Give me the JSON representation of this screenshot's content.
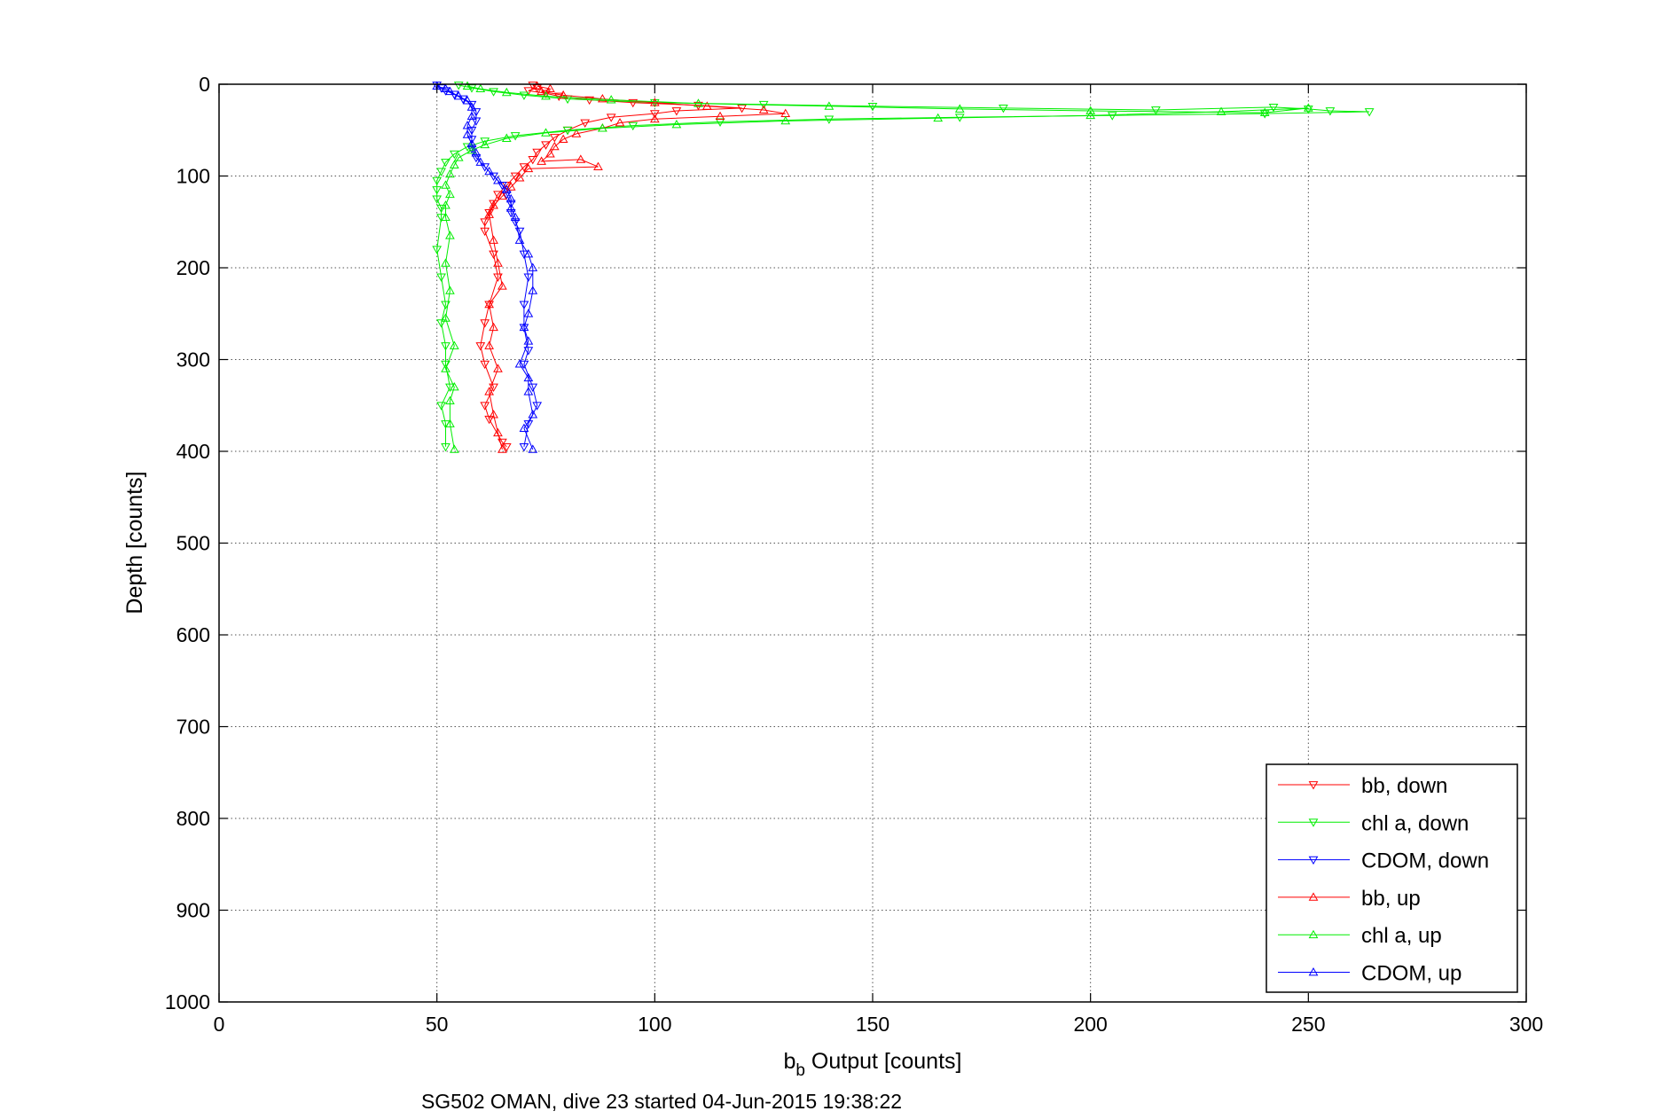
{
  "chart_data": {
    "type": "scatter",
    "title": "",
    "xlabel_main": "b",
    "xlabel_sub": "b",
    "xlabel_rest": " Output [counts]",
    "ylabel": "Depth [counts]",
    "caption": "SG502 OMAN, dive 23 started 04-Jun-2015 19:38:22",
    "xlim": [
      0,
      300
    ],
    "ylim": [
      0,
      1000
    ],
    "y_reversed": true,
    "grid": true,
    "xticks": [
      "0",
      "50",
      "100",
      "150",
      "200",
      "250",
      "300"
    ],
    "yticks": [
      "0",
      "100",
      "200",
      "300",
      "400",
      "500",
      "600",
      "700",
      "800",
      "900",
      "1000"
    ],
    "legend_position": "bottom-right",
    "series": [
      {
        "name": "bb, down",
        "color": "#ff0000",
        "marker": "triangle-down",
        "points": [
          [
            72,
            1
          ],
          [
            73,
            4
          ],
          [
            71,
            7
          ],
          [
            75,
            10
          ],
          [
            78,
            13
          ],
          [
            85,
            17
          ],
          [
            95,
            20
          ],
          [
            110,
            23
          ],
          [
            120,
            26
          ],
          [
            105,
            29
          ],
          [
            100,
            32
          ],
          [
            90,
            36
          ],
          [
            84,
            42
          ],
          [
            80,
            50
          ],
          [
            77,
            58
          ],
          [
            75,
            66
          ],
          [
            73,
            74
          ],
          [
            72,
            82
          ],
          [
            70,
            90
          ],
          [
            68,
            100
          ],
          [
            66,
            110
          ],
          [
            64,
            120
          ],
          [
            63,
            130
          ],
          [
            62,
            140
          ],
          [
            61,
            150
          ],
          [
            61,
            160
          ],
          [
            63,
            185
          ],
          [
            64,
            210
          ],
          [
            62,
            240
          ],
          [
            61,
            260
          ],
          [
            60,
            285
          ],
          [
            61,
            305
          ],
          [
            63,
            330
          ],
          [
            61,
            350
          ],
          [
            62,
            365
          ],
          [
            65,
            390
          ],
          [
            66,
            395
          ]
        ]
      },
      {
        "name": "chl a, down",
        "color": "#00ee00",
        "marker": "triangle-down",
        "points": [
          [
            55,
            1
          ],
          [
            58,
            4
          ],
          [
            63,
            8
          ],
          [
            70,
            12
          ],
          [
            80,
            16
          ],
          [
            100,
            20
          ],
          [
            125,
            22
          ],
          [
            150,
            24
          ],
          [
            180,
            26
          ],
          [
            215,
            28
          ],
          [
            242,
            25
          ],
          [
            250,
            27
          ],
          [
            255,
            29
          ],
          [
            264,
            30
          ],
          [
            240,
            32
          ],
          [
            205,
            34
          ],
          [
            170,
            36
          ],
          [
            140,
            38
          ],
          [
            115,
            41
          ],
          [
            95,
            45
          ],
          [
            80,
            50
          ],
          [
            68,
            56
          ],
          [
            61,
            62
          ],
          [
            57,
            68
          ],
          [
            54,
            76
          ],
          [
            52,
            85
          ],
          [
            51,
            95
          ],
          [
            50,
            105
          ],
          [
            50,
            115
          ],
          [
            50,
            125
          ],
          [
            51,
            135
          ],
          [
            51,
            145
          ],
          [
            50,
            180
          ],
          [
            51,
            210
          ],
          [
            52,
            240
          ],
          [
            51,
            260
          ],
          [
            52,
            285
          ],
          [
            52,
            305
          ],
          [
            53,
            330
          ],
          [
            51,
            350
          ],
          [
            52,
            370
          ],
          [
            52,
            395
          ]
        ]
      },
      {
        "name": "CDOM, down",
        "color": "#0000ff",
        "marker": "triangle-down",
        "points": [
          [
            50,
            1
          ],
          [
            51,
            4
          ],
          [
            52,
            7
          ],
          [
            54,
            11
          ],
          [
            56,
            16
          ],
          [
            58,
            22
          ],
          [
            59,
            30
          ],
          [
            59,
            40
          ],
          [
            58,
            50
          ],
          [
            58,
            60
          ],
          [
            58,
            70
          ],
          [
            59,
            80
          ],
          [
            61,
            90
          ],
          [
            63,
            100
          ],
          [
            65,
            110
          ],
          [
            66,
            120
          ],
          [
            67,
            130
          ],
          [
            67,
            140
          ],
          [
            68,
            150
          ],
          [
            69,
            160
          ],
          [
            70,
            185
          ],
          [
            71,
            210
          ],
          [
            70,
            240
          ],
          [
            70,
            265
          ],
          [
            71,
            290
          ],
          [
            70,
            305
          ],
          [
            72,
            330
          ],
          [
            73,
            350
          ],
          [
            71,
            370
          ],
          [
            70,
            395
          ]
        ]
      },
      {
        "name": "bb, up",
        "color": "#ff0000",
        "marker": "triangle-up",
        "points": [
          [
            73,
            2
          ],
          [
            76,
            5
          ],
          [
            74,
            8
          ],
          [
            79,
            12
          ],
          [
            88,
            16
          ],
          [
            100,
            20
          ],
          [
            112,
            24
          ],
          [
            125,
            28
          ],
          [
            130,
            32
          ],
          [
            115,
            35
          ],
          [
            100,
            38
          ],
          [
            92,
            42
          ],
          [
            88,
            48
          ],
          [
            82,
            54
          ],
          [
            79,
            60
          ],
          [
            77,
            68
          ],
          [
            76,
            76
          ],
          [
            74,
            84
          ],
          [
            83,
            82
          ],
          [
            87,
            90
          ],
          [
            71,
            92
          ],
          [
            69,
            102
          ],
          [
            67,
            112
          ],
          [
            65,
            122
          ],
          [
            63,
            132
          ],
          [
            62,
            142
          ],
          [
            63,
            170
          ],
          [
            64,
            195
          ],
          [
            65,
            220
          ],
          [
            62,
            240
          ],
          [
            63,
            265
          ],
          [
            62,
            285
          ],
          [
            64,
            310
          ],
          [
            62,
            335
          ],
          [
            63,
            360
          ],
          [
            64,
            380
          ],
          [
            65,
            398
          ]
        ]
      },
      {
        "name": "chl a, up",
        "color": "#00ee00",
        "marker": "triangle-up",
        "points": [
          [
            57,
            2
          ],
          [
            60,
            5
          ],
          [
            66,
            9
          ],
          [
            75,
            13
          ],
          [
            90,
            17
          ],
          [
            110,
            21
          ],
          [
            140,
            24
          ],
          [
            170,
            27
          ],
          [
            200,
            29
          ],
          [
            240,
            31
          ],
          [
            250,
            26
          ],
          [
            230,
            30
          ],
          [
            200,
            34
          ],
          [
            165,
            37
          ],
          [
            130,
            40
          ],
          [
            105,
            44
          ],
          [
            88,
            48
          ],
          [
            75,
            53
          ],
          [
            66,
            59
          ],
          [
            61,
            66
          ],
          [
            58,
            72
          ],
          [
            55,
            80
          ],
          [
            54,
            88
          ],
          [
            53,
            98
          ],
          [
            52,
            110
          ],
          [
            53,
            120
          ],
          [
            52,
            132
          ],
          [
            52,
            145
          ],
          [
            53,
            165
          ],
          [
            52,
            195
          ],
          [
            53,
            225
          ],
          [
            52,
            255
          ],
          [
            54,
            285
          ],
          [
            52,
            310
          ],
          [
            54,
            330
          ],
          [
            53,
            345
          ],
          [
            53,
            370
          ],
          [
            54,
            398
          ]
        ]
      },
      {
        "name": "CDOM, up",
        "color": "#0000ff",
        "marker": "triangle-up",
        "points": [
          [
            50,
            2
          ],
          [
            52,
            5
          ],
          [
            53,
            8
          ],
          [
            55,
            13
          ],
          [
            57,
            18
          ],
          [
            58,
            25
          ],
          [
            58,
            35
          ],
          [
            57,
            45
          ],
          [
            57,
            55
          ],
          [
            58,
            65
          ],
          [
            59,
            75
          ],
          [
            60,
            85
          ],
          [
            62,
            95
          ],
          [
            64,
            105
          ],
          [
            66,
            115
          ],
          [
            67,
            125
          ],
          [
            67,
            135
          ],
          [
            68,
            145
          ],
          [
            69,
            170
          ],
          [
            71,
            185
          ],
          [
            72,
            200
          ],
          [
            72,
            225
          ],
          [
            71,
            250
          ],
          [
            70,
            265
          ],
          [
            71,
            280
          ],
          [
            69,
            305
          ],
          [
            71,
            320
          ],
          [
            71,
            335
          ],
          [
            72,
            360
          ],
          [
            70,
            375
          ],
          [
            72,
            398
          ]
        ]
      }
    ]
  }
}
